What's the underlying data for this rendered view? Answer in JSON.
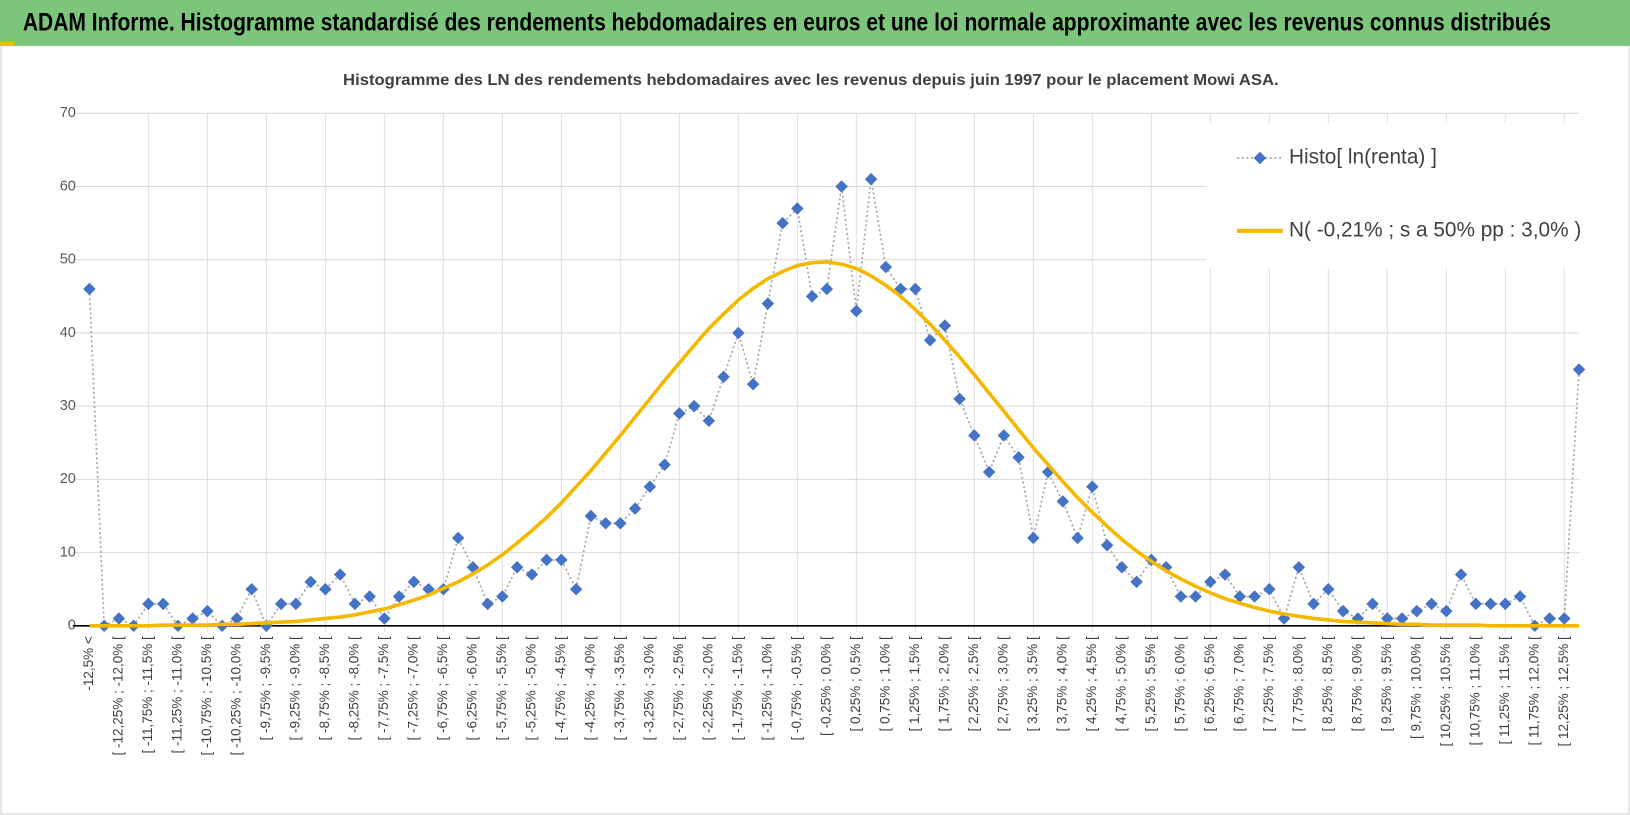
{
  "page_title": "ADAM Informe. Histogramme standardisé des rendements hebdomadaires en euros et une loi normale approximante avec les revenus connus distribués",
  "chart_data": {
    "type": "line",
    "title": "Histogramme  des LN des rendements hebdomadaires avec les revenus depuis juin 1997  pour le placement Mowi ASA.",
    "categories": [
      "-12,5% <",
      null,
      "[ -12,25% ; -12,0% [",
      null,
      "[ -11,75% ; -11,5% [",
      null,
      "[ -11,25% ; -11,0% [",
      null,
      "[ -10,75% ; -10,5% [",
      null,
      "[ -10,25% ; -10,0% [",
      null,
      "[ -9,75% ; -9,5% [",
      null,
      "[ -9,25% ; -9,0% [",
      null,
      "[ -8,75% ; -8,5% [",
      null,
      "[ -8,25% ; -8,0% [",
      null,
      "[ -7,75% ; -7,5% [",
      null,
      "[ -7,25% ; -7,0% [",
      null,
      "[ -6,75% ; -6,5% [",
      null,
      "[ -6,25% ; -6,0% [",
      null,
      "[ -5,75% ; -5,5% [",
      null,
      "[ -5,25% ; -5,0% [",
      null,
      "[ -4,75% ; -4,5% [",
      null,
      "[ -4,25% ; -4,0% [",
      null,
      "[ -3,75% ; -3,5% [",
      null,
      "[ -3,25% ; -3,0% [",
      null,
      "[ -2,75% ; -2,5% [",
      null,
      "[ -2,25% ; -2,0% [",
      null,
      "[ -1,75% ; -1,5% [",
      null,
      "[ -1,25% ; -1,0% [",
      null,
      "[ -0,75% ; -0,5% [",
      null,
      "[ -0,25% ; 0,0% [",
      null,
      "[ 0,25% ; 0,5% [",
      null,
      "[ 0,75% ; 1,0% [",
      null,
      "[ 1,25% ; 1,5% [",
      null,
      "[ 1,75% ; 2,0% [",
      null,
      "[ 2,25% ; 2,5% [",
      null,
      "[ 2,75% ; 3,0% [",
      null,
      "[ 3,25% ; 3,5% [",
      null,
      "[ 3,75% ; 4,0% [",
      null,
      "[ 4,25% ; 4,5% [",
      null,
      "[ 4,75% ; 5,0% [",
      null,
      "[ 5,25% ; 5,5% [",
      null,
      "[ 5,75% ; 6,0% [",
      null,
      "[ 6,25% ; 6,5% [",
      null,
      "[ 6,75% ; 7,0% [",
      null,
      "[ 7,25% ; 7,5% [",
      null,
      "[ 7,75% ; 8,0% [",
      null,
      "[ 8,25% ; 8,5% [",
      null,
      "[ 8,75% ; 9,0% [",
      null,
      "[ 9,25% ; 9,5% [",
      null,
      "[ 9,75% ; 10,0% [",
      null,
      "[ 10,25% ; 10,5% [",
      null,
      "[ 10,75% ; 11,0% [",
      null,
      "[ 11,25% ; 11,5% [",
      null,
      "[ 11,75% ; 12,0% [",
      null,
      "[ 12,25% ; 12,5% [",
      null
    ],
    "series": [
      {
        "name": "Histo[ ln(renta) ]",
        "color": "#4472c4",
        "line_color": "#a6a6a6",
        "line_style": "dotted",
        "marker": "diamond",
        "values": [
          46,
          0,
          1,
          0,
          3,
          3,
          0,
          1,
          2,
          0,
          1,
          5,
          0,
          3,
          3,
          6,
          5,
          7,
          3,
          4,
          1,
          4,
          6,
          5,
          5,
          12,
          8,
          3,
          4,
          8,
          7,
          9,
          9,
          5,
          15,
          14,
          14,
          16,
          19,
          22,
          29,
          30,
          28,
          34,
          40,
          33,
          44,
          55,
          57,
          45,
          46,
          60,
          43,
          61,
          49,
          46,
          46,
          39,
          41,
          31,
          26,
          21,
          26,
          23,
          12,
          21,
          17,
          12,
          19,
          11,
          8,
          6,
          9,
          8,
          4,
          4,
          6,
          7,
          4,
          4,
          5,
          1,
          8,
          3,
          5,
          2,
          1,
          3,
          1,
          1,
          2,
          3,
          2,
          7,
          3,
          3,
          3,
          4,
          0,
          1,
          1,
          35
        ]
      },
      {
        "name": "N( -0,21% ; s a 50% pp : 3,0% )",
        "color": "#f5b800",
        "line_style": "solid",
        "marker": "none",
        "values": [
          0.0,
          0.0,
          0.0,
          0.0,
          0.0,
          0.1,
          0.1,
          0.1,
          0.1,
          0.2,
          0.2,
          0.3,
          0.4,
          0.5,
          0.6,
          0.8,
          1.0,
          1.2,
          1.5,
          1.9,
          2.3,
          2.9,
          3.5,
          4.2,
          5.1,
          6.0,
          7.1,
          8.3,
          9.7,
          11.3,
          13.0,
          14.8,
          16.8,
          19.0,
          21.2,
          23.6,
          26.0,
          28.5,
          31.0,
          33.5,
          35.9,
          38.3,
          40.6,
          42.6,
          44.5,
          46.1,
          47.4,
          48.4,
          49.2,
          49.6,
          49.7,
          49.4,
          48.8,
          47.8,
          46.5,
          45.0,
          43.2,
          41.2,
          39.0,
          36.7,
          34.3,
          31.8,
          29.3,
          26.8,
          24.3,
          22.0,
          19.7,
          17.5,
          15.5,
          13.6,
          11.8,
          10.2,
          8.8,
          7.5,
          6.4,
          5.4,
          4.5,
          3.7,
          3.1,
          2.5,
          2.0,
          1.6,
          1.3,
          1.0,
          0.8,
          0.6,
          0.5,
          0.4,
          0.3,
          0.2,
          0.2,
          0.1,
          0.1,
          0.1,
          0.1,
          0.0,
          0.0,
          0.0,
          0.0,
          0.0,
          0.0,
          0.0
        ]
      }
    ],
    "ylim": [
      0,
      70
    ],
    "yticks": [
      0,
      10,
      20,
      30,
      40,
      50,
      60,
      70
    ],
    "grid": true,
    "legend": "upper right"
  }
}
